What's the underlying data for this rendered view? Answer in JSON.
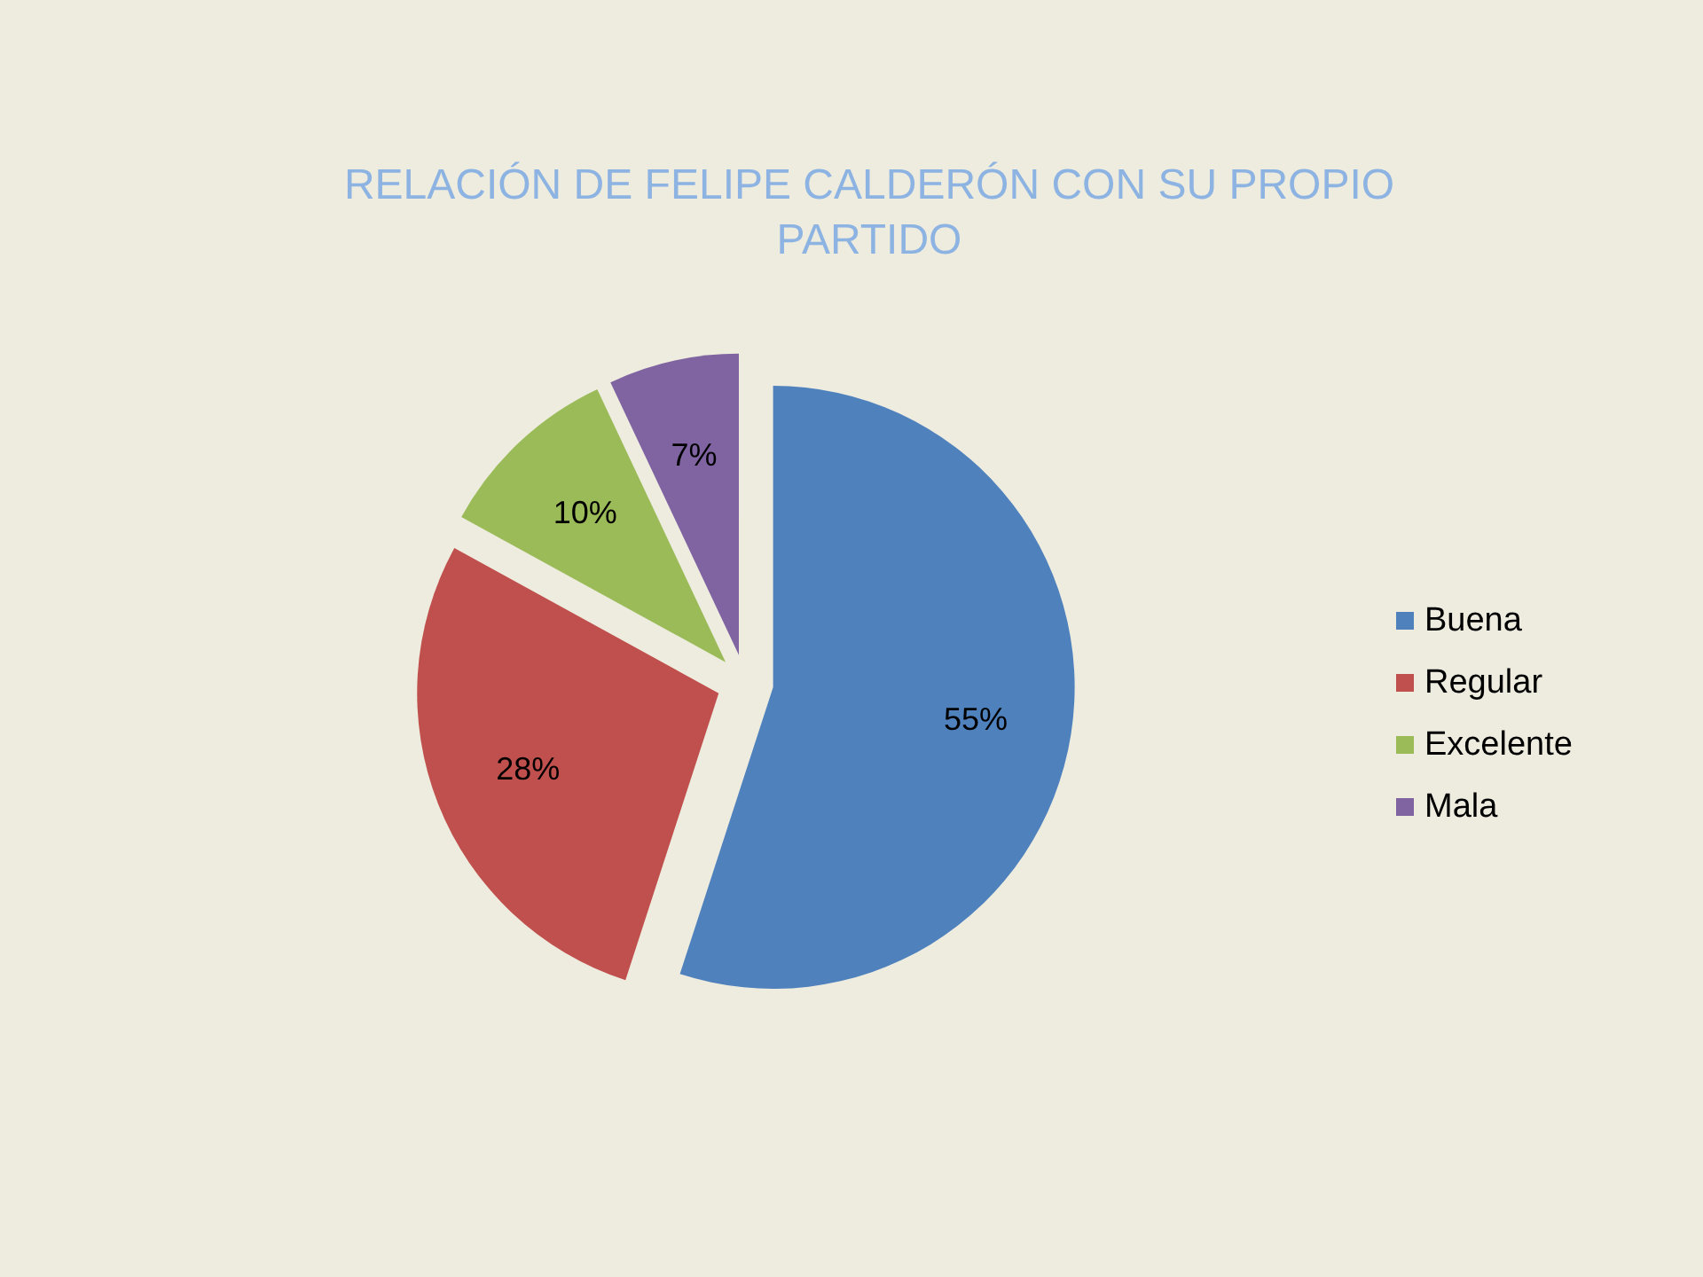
{
  "chart_data": {
    "type": "pie",
    "title": "RELACIÓN DE FELIPE CALDERÓN CON SU PROPIO PARTIDO",
    "categories": [
      "Buena",
      "Regular",
      "Excelente",
      "Mala"
    ],
    "values": [
      55,
      28,
      10,
      7
    ],
    "colors": [
      "#4f81bd",
      "#c0504d",
      "#9bbb59",
      "#8064a2"
    ],
    "value_labels": [
      "55%",
      "28%",
      "10%",
      "7%"
    ],
    "legend": "right"
  }
}
